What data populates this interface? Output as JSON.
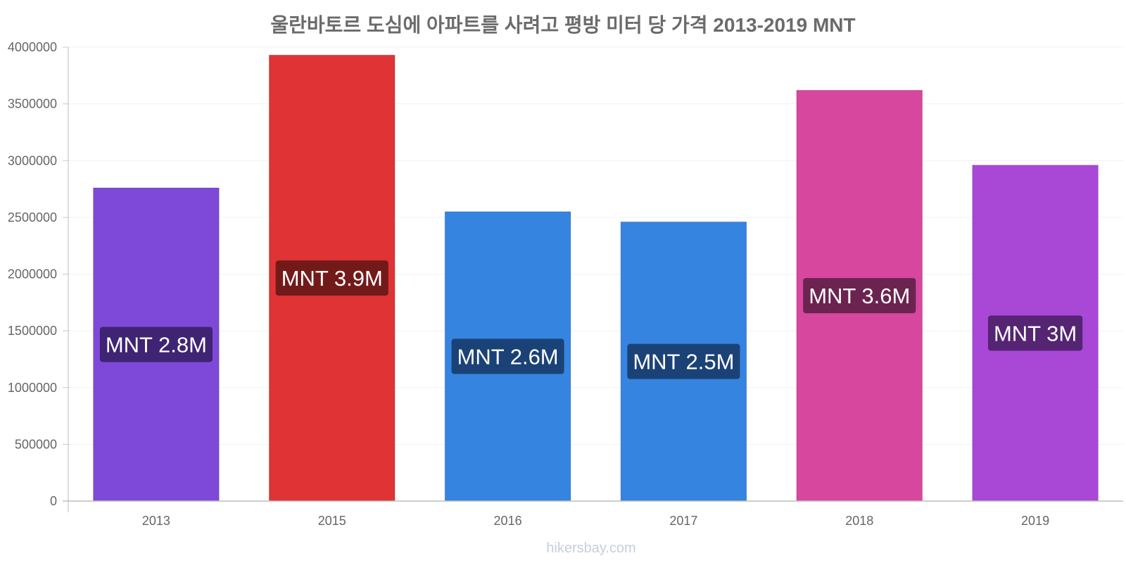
{
  "chart_data": {
    "type": "bar",
    "title": "울란바토르 도심에 아파트를 사려고 평방 미터 당 가격 2013-2019 MNT",
    "categories": [
      "2013",
      "2015",
      "2016",
      "2017",
      "2018",
      "2019"
    ],
    "values": [
      2760000,
      3930000,
      2550000,
      2460000,
      3620000,
      2960000
    ],
    "data_labels": [
      "MNT 2.8M",
      "MNT 3.9M",
      "MNT 2.6M",
      "MNT 2.5M",
      "MNT 3.6M",
      "MNT 3M"
    ],
    "bar_colors": [
      "#7e49d8",
      "#e03336",
      "#3584e0",
      "#3584e0",
      "#d7479e",
      "#a947d7"
    ],
    "label_colors": [
      "#3f2474",
      "#721a1a",
      "#1b4277",
      "#1b4277",
      "#6b2350",
      "#552473"
    ],
    "ylim": [
      0,
      4000000
    ],
    "yticks": [
      "0",
      "500000",
      "1000000",
      "1500000",
      "2000000",
      "2500000",
      "3000000",
      "3500000",
      "4000000"
    ],
    "xlabel": "",
    "ylabel": "",
    "grid": true,
    "legend": "none"
  },
  "watermark": "hikersbay.com"
}
